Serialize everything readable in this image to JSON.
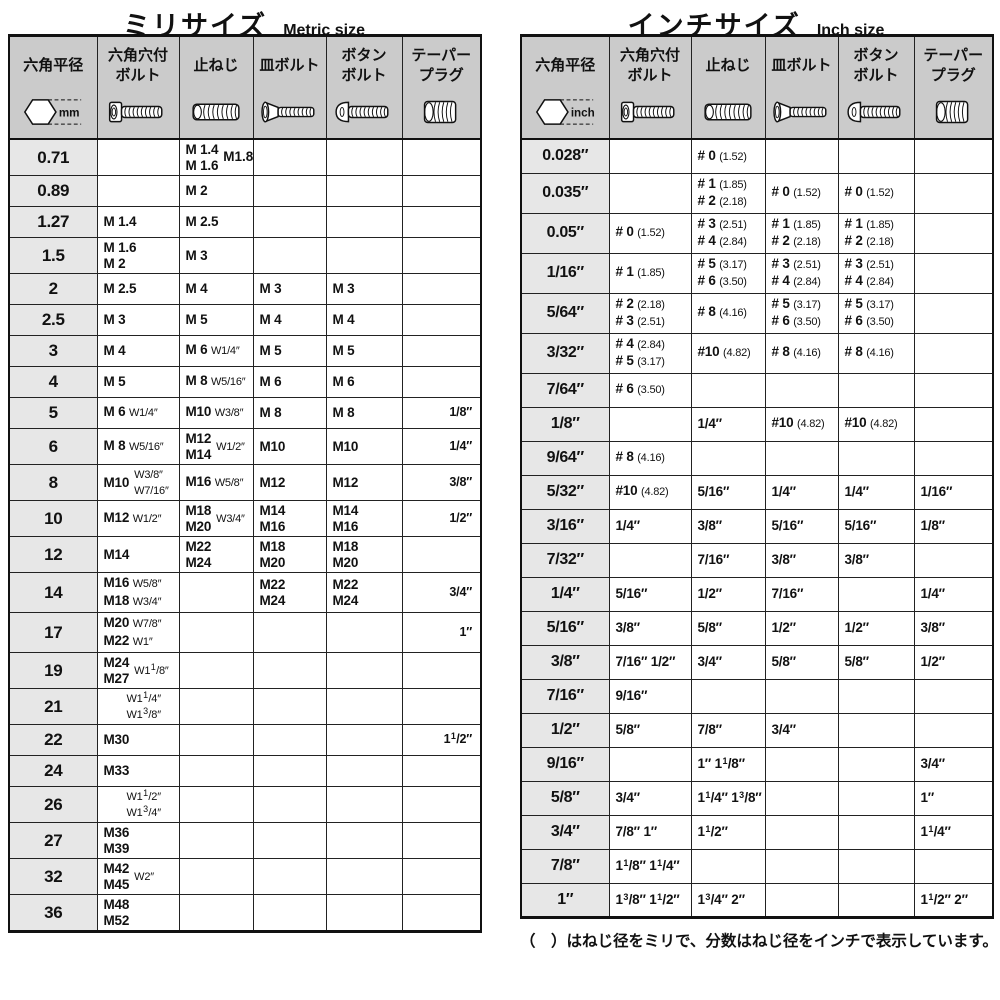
{
  "metric": {
    "title": "ミリサイズ",
    "subtitle": "Metric size",
    "unit": "mm",
    "columns": [
      {
        "id": "hex-width",
        "label": [
          "六角平径"
        ],
        "icon": "hex-width-icon"
      },
      {
        "id": "hex-socket-bolt",
        "label": [
          "六角穴付",
          "ボルト"
        ],
        "icon": "cap-screw-icon"
      },
      {
        "id": "set-screw",
        "label": [
          "止ねじ"
        ],
        "icon": "set-screw-icon"
      },
      {
        "id": "flat-head-bolt",
        "label": [
          "皿ボルト"
        ],
        "icon": "flat-head-screw-icon"
      },
      {
        "id": "button-bolt",
        "label": [
          "ボタン",
          "ボルト"
        ],
        "icon": "button-head-screw-icon"
      },
      {
        "id": "taper-plug",
        "label": [
          "テーパー",
          "プラグ"
        ],
        "icon": "taper-plug-icon"
      }
    ],
    "rows": [
      {
        "key": "0.71",
        "cells": [
          "",
          {
            "m": [
              "M 1.4",
              "M 1.6"
            ],
            "w": [
              "M1.8"
            ]
          },
          "",
          "",
          ""
        ]
      },
      {
        "key": "0.89",
        "cells": [
          "",
          "M 2",
          "",
          "",
          ""
        ]
      },
      {
        "key": "1.27",
        "cells": [
          "M 1.4",
          "M 2.5",
          "",
          "",
          ""
        ]
      },
      {
        "key": "1.5",
        "cells": [
          {
            "m": [
              "M 1.6",
              "M 2"
            ]
          },
          "M 3",
          "",
          "",
          ""
        ]
      },
      {
        "key": "2",
        "cells": [
          "M 2.5",
          "M 4",
          "M 3",
          "M 3",
          ""
        ]
      },
      {
        "key": "2.5",
        "cells": [
          "M 3",
          "M 5",
          "M 4",
          "M 4",
          ""
        ]
      },
      {
        "key": "3",
        "cells": [
          "M 4",
          "M 6 W1/4″",
          "M 5",
          "M 5",
          ""
        ]
      },
      {
        "key": "4",
        "cells": [
          "M 5",
          "M 8 W5/16″",
          "M 6",
          "M 6",
          ""
        ]
      },
      {
        "key": "5",
        "cells": [
          "M 6 W1/4″",
          "M10 W3/8″",
          "M 8",
          "M 8",
          "1/8″"
        ]
      },
      {
        "key": "6",
        "cells": [
          "M 8 W5/16″",
          {
            "m": [
              "M12",
              "M14"
            ],
            "w": [
              "W1/2″"
            ]
          },
          "M10",
          "M10",
          "1/4″"
        ]
      },
      {
        "key": "8",
        "cells": [
          {
            "m": [
              "M10"
            ],
            "w": [
              "W3/8″",
              "W7/16″"
            ]
          },
          "M16 W5/8″",
          "M12",
          "M12",
          "3/8″"
        ]
      },
      {
        "key": "10",
        "cells": [
          "M12 W1/2″",
          {
            "m": [
              "M18",
              "M20"
            ],
            "w": [
              "W3/4″"
            ]
          },
          {
            "m": [
              "M14",
              "M16"
            ]
          },
          {
            "m": [
              "M14",
              "M16"
            ]
          },
          "1/2″"
        ]
      },
      {
        "key": "12",
        "cells": [
          "M14",
          {
            "m": [
              "M22",
              "M24"
            ]
          },
          {
            "m": [
              "M18",
              "M20"
            ]
          },
          {
            "m": [
              "M18",
              "M20"
            ]
          },
          ""
        ]
      },
      {
        "key": "14",
        "cells": [
          {
            "m": [
              "M16 W5/8″",
              "M18 W3/4″"
            ]
          },
          "",
          {
            "m": [
              "M22",
              "M24"
            ]
          },
          {
            "m": [
              "M22",
              "M24"
            ]
          },
          "3/4″"
        ]
      },
      {
        "key": "17",
        "cells": [
          {
            "m": [
              "M20 W7/8″",
              "M22 W1″"
            ]
          },
          "",
          "",
          "",
          "1″"
        ]
      },
      {
        "key": "19",
        "cells": [
          {
            "m": [
              "M24",
              "M27"
            ],
            "w": [
              "W1 1/8″"
            ]
          },
          "",
          "",
          "",
          ""
        ]
      },
      {
        "key": "21",
        "cells": [
          {
            "w": [
              "W1 1/4″",
              "W1 3/8″"
            ]
          },
          "",
          "",
          "",
          ""
        ]
      },
      {
        "key": "22",
        "cells": [
          "M30",
          "",
          "",
          "",
          "1 1/2″"
        ]
      },
      {
        "key": "24",
        "cells": [
          "M33",
          "",
          "",
          "",
          ""
        ]
      },
      {
        "key": "26",
        "cells": [
          {
            "w": [
              "W1 1/2″",
              "W1 3/4″"
            ]
          },
          "",
          "",
          "",
          ""
        ]
      },
      {
        "key": "27",
        "cells": [
          {
            "m": [
              "M36",
              "M39"
            ]
          },
          "",
          "",
          "",
          ""
        ]
      },
      {
        "key": "32",
        "cells": [
          {
            "m": [
              "M42",
              "M45"
            ],
            "w": [
              "W2″"
            ]
          },
          "",
          "",
          "",
          ""
        ]
      },
      {
        "key": "36",
        "cells": [
          {
            "m": [
              "M48",
              "M52"
            ]
          },
          "",
          "",
          "",
          ""
        ]
      }
    ]
  },
  "inch": {
    "title": "インチサイズ",
    "subtitle": "Inch size",
    "unit": "inch",
    "columns": [
      {
        "id": "hex-width",
        "label": [
          "六角平径"
        ],
        "icon": "hex-width-icon"
      },
      {
        "id": "hex-socket-bolt",
        "label": [
          "六角穴付",
          "ボルト"
        ],
        "icon": "cap-screw-icon"
      },
      {
        "id": "set-screw",
        "label": [
          "止ねじ"
        ],
        "icon": "set-screw-icon"
      },
      {
        "id": "flat-head-bolt",
        "label": [
          "皿ボルト"
        ],
        "icon": "flat-head-screw-icon"
      },
      {
        "id": "button-bolt",
        "label": [
          "ボタン",
          "ボルト"
        ],
        "icon": "button-head-screw-icon"
      },
      {
        "id": "taper-plug",
        "label": [
          "テーパー",
          "プラグ"
        ],
        "icon": "taper-plug-icon"
      }
    ],
    "rows": [
      {
        "key": "0.028″",
        "cells": [
          "",
          "# 0 (1.52)",
          "",
          "",
          ""
        ]
      },
      {
        "key": "0.035″",
        "cells": [
          "",
          {
            "m": [
              "# 1 (1.85)",
              "# 2 (2.18)"
            ]
          },
          "# 0 (1.52)",
          "# 0 (1.52)",
          ""
        ]
      },
      {
        "key": "0.05″",
        "cells": [
          "# 0 (1.52)",
          {
            "m": [
              "# 3 (2.51)",
              "# 4 (2.84)"
            ]
          },
          {
            "m": [
              "# 1 (1.85)",
              "# 2 (2.18)"
            ]
          },
          {
            "m": [
              "# 1 (1.85)",
              "# 2 (2.18)"
            ]
          },
          ""
        ]
      },
      {
        "key": "1/16″",
        "cells": [
          "# 1 (1.85)",
          {
            "m": [
              "# 5 (3.17)",
              "# 6 (3.50)"
            ]
          },
          {
            "m": [
              "# 3 (2.51)",
              "# 4 (2.84)"
            ]
          },
          {
            "m": [
              "# 3 (2.51)",
              "# 4 (2.84)"
            ]
          },
          ""
        ]
      },
      {
        "key": "5/64″",
        "cells": [
          {
            "m": [
              "# 2 (2.18)",
              "# 3 (2.51)"
            ]
          },
          "# 8 (4.16)",
          {
            "m": [
              "# 5 (3.17)",
              "# 6 (3.50)"
            ]
          },
          {
            "m": [
              "# 5 (3.17)",
              "# 6 (3.50)"
            ]
          },
          ""
        ]
      },
      {
        "key": "3/32″",
        "cells": [
          {
            "m": [
              "# 4 (2.84)",
              "# 5 (3.17)"
            ]
          },
          "#10 (4.82)",
          "# 8 (4.16)",
          "# 8 (4.16)",
          ""
        ]
      },
      {
        "key": "7/64″",
        "cells": [
          "# 6 (3.50)",
          "",
          "",
          "",
          ""
        ]
      },
      {
        "key": "1/8″",
        "cells": [
          "",
          "1/4″",
          "#10 (4.82)",
          "#10 (4.82)",
          ""
        ]
      },
      {
        "key": "9/64″",
        "cells": [
          "# 8 (4.16)",
          "",
          "",
          "",
          ""
        ]
      },
      {
        "key": "5/32″",
        "cells": [
          "#10 (4.82)",
          "5/16″",
          "1/4″",
          "1/4″",
          "1/16″"
        ]
      },
      {
        "key": "3/16″",
        "cells": [
          "1/4″",
          "3/8″",
          "5/16″",
          "5/16″",
          "1/8″"
        ]
      },
      {
        "key": "7/32″",
        "cells": [
          "",
          "7/16″",
          "3/8″",
          "3/8″",
          ""
        ]
      },
      {
        "key": "1/4″",
        "cells": [
          "5/16″",
          "1/2″",
          "7/16″",
          "",
          "1/4″"
        ]
      },
      {
        "key": "5/16″",
        "cells": [
          "3/8″",
          "5/8″",
          "1/2″",
          "1/2″",
          "3/8″"
        ]
      },
      {
        "key": "3/8″",
        "cells": [
          "7/16″ 1/2″",
          "3/4″",
          "5/8″",
          "5/8″",
          "1/2″"
        ]
      },
      {
        "key": "7/16″",
        "cells": [
          "9/16″",
          "",
          "",
          "",
          ""
        ]
      },
      {
        "key": "1/2″",
        "cells": [
          "5/8″",
          "7/8″",
          "3/4″",
          "",
          ""
        ]
      },
      {
        "key": "9/16″",
        "cells": [
          "",
          "1″  1 1/8″",
          "",
          "",
          "3/4″"
        ]
      },
      {
        "key": "5/8″",
        "cells": [
          "3/4″",
          "1 1/4″ 1 3/8″",
          "",
          "",
          "1″"
        ]
      },
      {
        "key": "3/4″",
        "cells": [
          "7/8″  1″",
          "1 1/2″",
          "",
          "",
          "1 1/4″"
        ]
      },
      {
        "key": "7/8″",
        "cells": [
          "1 1/8″ 1 1/4″",
          "",
          "",
          "",
          ""
        ]
      },
      {
        "key": "1″",
        "cells": [
          "1 3/8″ 1 1/2″",
          "1 3/4″  2″",
          "",
          "",
          "1 1/2″  2″"
        ]
      }
    ]
  },
  "footnote": "（　）はねじ径をミリで、分数はねじ径をインチで表示しています。"
}
